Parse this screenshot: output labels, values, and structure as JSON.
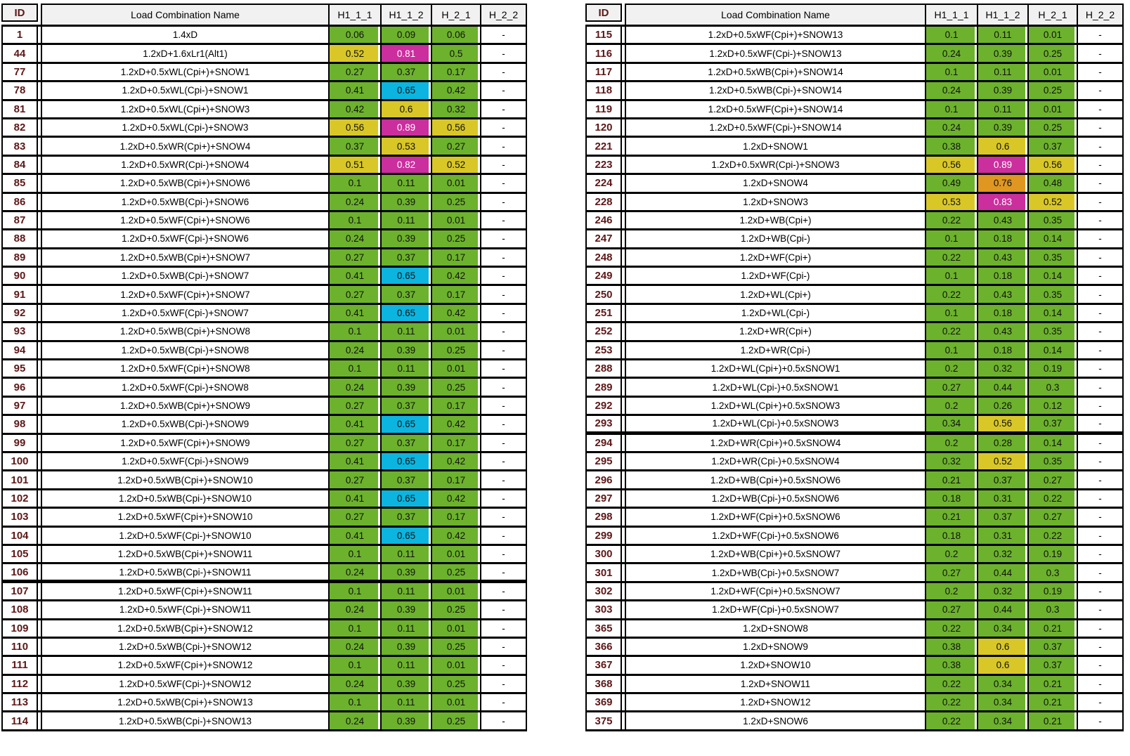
{
  "report": {
    "columns": [
      "ID",
      "Load Combination Name",
      "H1_1_1",
      "H1_1_2",
      "H_2_1",
      "H_2_2"
    ],
    "empty_value": "-",
    "colors": {
      "green": "#6CB22D",
      "yellow": "#D9C728",
      "magenta": "#CB2E9D",
      "cyan": "#0BB5DF",
      "orange": "#DF9722",
      "idText": "#5E1717",
      "headerBg": "#F1F1F1",
      "border": "#000000"
    },
    "tables": [
      {
        "rows": [
          {
            "id": "1",
            "name": "1.4xD",
            "v": [
              "0.06",
              "0.09",
              "0.06"
            ],
            "c": "ggg"
          },
          {
            "id": "44",
            "name": "1.2xD+1.6xLr1(Alt1)",
            "v": [
              "0.52",
              "0.81",
              "0.5"
            ],
            "c": "ymg"
          },
          {
            "id": "77",
            "name": "1.2xD+0.5xWL(Cpi+)+SNOW1",
            "v": [
              "0.27",
              "0.37",
              "0.17"
            ],
            "c": "ggg"
          },
          {
            "id": "78",
            "name": "1.2xD+0.5xWL(Cpi-)+SNOW1",
            "v": [
              "0.41",
              "0.65",
              "0.42"
            ],
            "c": "gcg"
          },
          {
            "id": "81",
            "name": "1.2xD+0.5xWL(Cpi+)+SNOW3",
            "v": [
              "0.42",
              "0.6",
              "0.32"
            ],
            "c": "gyg"
          },
          {
            "id": "82",
            "name": "1.2xD+0.5xWL(Cpi-)+SNOW3",
            "v": [
              "0.56",
              "0.89",
              "0.56"
            ],
            "c": "ymy"
          },
          {
            "id": "83",
            "name": "1.2xD+0.5xWR(Cpi+)+SNOW4",
            "v": [
              "0.37",
              "0.53",
              "0.27"
            ],
            "c": "gyg"
          },
          {
            "id": "84",
            "name": "1.2xD+0.5xWR(Cpi-)+SNOW4",
            "v": [
              "0.51",
              "0.82",
              "0.52"
            ],
            "c": "ymy"
          },
          {
            "id": "85",
            "name": "1.2xD+0.5xWB(Cpi+)+SNOW6",
            "v": [
              "0.1",
              "0.11",
              "0.01"
            ],
            "c": "ggg"
          },
          {
            "id": "86",
            "name": "1.2xD+0.5xWB(Cpi-)+SNOW6",
            "v": [
              "0.24",
              "0.39",
              "0.25"
            ],
            "c": "ggg"
          },
          {
            "id": "87",
            "name": "1.2xD+0.5xWF(Cpi+)+SNOW6",
            "v": [
              "0.1",
              "0.11",
              "0.01"
            ],
            "c": "ggg"
          },
          {
            "id": "88",
            "name": "1.2xD+0.5xWF(Cpi-)+SNOW6",
            "v": [
              "0.24",
              "0.39",
              "0.25"
            ],
            "c": "ggg"
          },
          {
            "id": "89",
            "name": "1.2xD+0.5xWB(Cpi+)+SNOW7",
            "v": [
              "0.27",
              "0.37",
              "0.17"
            ],
            "c": "ggg"
          },
          {
            "id": "90",
            "name": "1.2xD+0.5xWB(Cpi-)+SNOW7",
            "v": [
              "0.41",
              "0.65",
              "0.42"
            ],
            "c": "gcg"
          },
          {
            "id": "91",
            "name": "1.2xD+0.5xWF(Cpi+)+SNOW7",
            "v": [
              "0.27",
              "0.37",
              "0.17"
            ],
            "c": "ggg"
          },
          {
            "id": "92",
            "name": "1.2xD+0.5xWF(Cpi-)+SNOW7",
            "v": [
              "0.41",
              "0.65",
              "0.42"
            ],
            "c": "gcg"
          },
          {
            "id": "93",
            "name": "1.2xD+0.5xWB(Cpi+)+SNOW8",
            "v": [
              "0.1",
              "0.11",
              "0.01"
            ],
            "c": "ggg"
          },
          {
            "id": "94",
            "name": "1.2xD+0.5xWB(Cpi-)+SNOW8",
            "v": [
              "0.24",
              "0.39",
              "0.25"
            ],
            "c": "ggg"
          },
          {
            "id": "95",
            "name": "1.2xD+0.5xWF(Cpi+)+SNOW8",
            "v": [
              "0.1",
              "0.11",
              "0.01"
            ],
            "c": "ggg"
          },
          {
            "id": "96",
            "name": "1.2xD+0.5xWF(Cpi-)+SNOW8",
            "v": [
              "0.24",
              "0.39",
              "0.25"
            ],
            "c": "ggg"
          },
          {
            "id": "97",
            "name": "1.2xD+0.5xWB(Cpi+)+SNOW9",
            "v": [
              "0.27",
              "0.37",
              "0.17"
            ],
            "c": "ggg"
          },
          {
            "id": "98",
            "name": "1.2xD+0.5xWB(Cpi-)+SNOW9",
            "v": [
              "0.41",
              "0.65",
              "0.42"
            ],
            "c": "gcg"
          },
          {
            "id": "99",
            "name": "1.2xD+0.5xWF(Cpi+)+SNOW9",
            "v": [
              "0.27",
              "0.37",
              "0.17"
            ],
            "c": "ggg"
          },
          {
            "id": "100",
            "name": "1.2xD+0.5xWF(Cpi-)+SNOW9",
            "v": [
              "0.41",
              "0.65",
              "0.42"
            ],
            "c": "gcg"
          },
          {
            "id": "101",
            "name": "1.2xD+0.5xWB(Cpi+)+SNOW10",
            "v": [
              "0.27",
              "0.37",
              "0.17"
            ],
            "c": "ggg"
          },
          {
            "id": "102",
            "name": "1.2xD+0.5xWB(Cpi-)+SNOW10",
            "v": [
              "0.41",
              "0.65",
              "0.42"
            ],
            "c": "gcg"
          },
          {
            "id": "103",
            "name": "1.2xD+0.5xWF(Cpi+)+SNOW10",
            "v": [
              "0.27",
              "0.37",
              "0.17"
            ],
            "c": "ggg"
          },
          {
            "id": "104",
            "name": "1.2xD+0.5xWF(Cpi-)+SNOW10",
            "v": [
              "0.41",
              "0.65",
              "0.42"
            ],
            "c": "gcg"
          },
          {
            "id": "105",
            "name": "1.2xD+0.5xWB(Cpi+)+SNOW11",
            "v": [
              "0.1",
              "0.11",
              "0.01"
            ],
            "c": "ggg"
          },
          {
            "id": "106",
            "name": "1.2xD+0.5xWB(Cpi-)+SNOW11",
            "v": [
              "0.24",
              "0.39",
              "0.25"
            ],
            "c": "ggg",
            "t": true
          },
          {
            "id": "107",
            "name": "1.2xD+0.5xWF(Cpi+)+SNOW11",
            "v": [
              "0.1",
              "0.11",
              "0.01"
            ],
            "c": "ggg"
          },
          {
            "id": "108",
            "name": "1.2xD+0.5xWF(Cpi-)+SNOW11",
            "v": [
              "0.24",
              "0.39",
              "0.25"
            ],
            "c": "ggg"
          },
          {
            "id": "109",
            "name": "1.2xD+0.5xWB(Cpi+)+SNOW12",
            "v": [
              "0.1",
              "0.11",
              "0.01"
            ],
            "c": "ggg"
          },
          {
            "id": "110",
            "name": "1.2xD+0.5xWB(Cpi-)+SNOW12",
            "v": [
              "0.24",
              "0.39",
              "0.25"
            ],
            "c": "ggg"
          },
          {
            "id": "111",
            "name": "1.2xD+0.5xWF(Cpi+)+SNOW12",
            "v": [
              "0.1",
              "0.11",
              "0.01"
            ],
            "c": "ggg"
          },
          {
            "id": "112",
            "name": "1.2xD+0.5xWF(Cpi-)+SNOW12",
            "v": [
              "0.24",
              "0.39",
              "0.25"
            ],
            "c": "ggg"
          },
          {
            "id": "113",
            "name": "1.2xD+0.5xWB(Cpi+)+SNOW13",
            "v": [
              "0.1",
              "0.11",
              "0.01"
            ],
            "c": "ggg"
          },
          {
            "id": "114",
            "name": "1.2xD+0.5xWB(Cpi-)+SNOW13",
            "v": [
              "0.24",
              "0.39",
              "0.25"
            ],
            "c": "ggg"
          }
        ]
      },
      {
        "rows": [
          {
            "id": "115",
            "name": "1.2xD+0.5xWF(Cpi+)+SNOW13",
            "v": [
              "0.1",
              "0.11",
              "0.01"
            ],
            "c": "ggg"
          },
          {
            "id": "116",
            "name": "1.2xD+0.5xWF(Cpi-)+SNOW13",
            "v": [
              "0.24",
              "0.39",
              "0.25"
            ],
            "c": "ggg"
          },
          {
            "id": "117",
            "name": "1.2xD+0.5xWB(Cpi+)+SNOW14",
            "v": [
              "0.1",
              "0.11",
              "0.01"
            ],
            "c": "ggg"
          },
          {
            "id": "118",
            "name": "1.2xD+0.5xWB(Cpi-)+SNOW14",
            "v": [
              "0.24",
              "0.39",
              "0.25"
            ],
            "c": "ggg"
          },
          {
            "id": "119",
            "name": "1.2xD+0.5xWF(Cpi+)+SNOW14",
            "v": [
              "0.1",
              "0.11",
              "0.01"
            ],
            "c": "ggg"
          },
          {
            "id": "120",
            "name": "1.2xD+0.5xWF(Cpi-)+SNOW14",
            "v": [
              "0.24",
              "0.39",
              "0.25"
            ],
            "c": "ggg"
          },
          {
            "id": "221",
            "name": "1.2xD+SNOW1",
            "v": [
              "0.38",
              "0.6",
              "0.37"
            ],
            "c": "gyg"
          },
          {
            "id": "223",
            "name": "1.2xD+0.5xWR(Cpi-)+SNOW3",
            "v": [
              "0.56",
              "0.89",
              "0.56"
            ],
            "c": "ymy"
          },
          {
            "id": "224",
            "name": "1.2xD+SNOW4",
            "v": [
              "0.49",
              "0.76",
              "0.48"
            ],
            "c": "gog"
          },
          {
            "id": "228",
            "name": "1.2xD+SNOW3",
            "v": [
              "0.53",
              "0.83",
              "0.52"
            ],
            "c": "ymy"
          },
          {
            "id": "246",
            "name": "1.2xD+WB(Cpi+)",
            "v": [
              "0.22",
              "0.43",
              "0.35"
            ],
            "c": "ggg"
          },
          {
            "id": "247",
            "name": "1.2xD+WB(Cpi-)",
            "v": [
              "0.1",
              "0.18",
              "0.14"
            ],
            "c": "ggg"
          },
          {
            "id": "248",
            "name": "1.2xD+WF(Cpi+)",
            "v": [
              "0.22",
              "0.43",
              "0.35"
            ],
            "c": "ggg"
          },
          {
            "id": "249",
            "name": "1.2xD+WF(Cpi-)",
            "v": [
              "0.1",
              "0.18",
              "0.14"
            ],
            "c": "ggg"
          },
          {
            "id": "250",
            "name": "1.2xD+WL(Cpi+)",
            "v": [
              "0.22",
              "0.43",
              "0.35"
            ],
            "c": "ggg"
          },
          {
            "id": "251",
            "name": "1.2xD+WL(Cpi-)",
            "v": [
              "0.1",
              "0.18",
              "0.14"
            ],
            "c": "ggg"
          },
          {
            "id": "252",
            "name": "1.2xD+WR(Cpi+)",
            "v": [
              "0.22",
              "0.43",
              "0.35"
            ],
            "c": "ggg"
          },
          {
            "id": "253",
            "name": "1.2xD+WR(Cpi-)",
            "v": [
              "0.1",
              "0.18",
              "0.14"
            ],
            "c": "ggg"
          },
          {
            "id": "288",
            "name": "1.2xD+WL(Cpi+)+0.5xSNOW1",
            "v": [
              "0.2",
              "0.32",
              "0.19"
            ],
            "c": "ggg"
          },
          {
            "id": "289",
            "name": "1.2xD+WL(Cpi-)+0.5xSNOW1",
            "v": [
              "0.27",
              "0.44",
              "0.3"
            ],
            "c": "ggg"
          },
          {
            "id": "292",
            "name": "1.2xD+WL(Cpi+)+0.5xSNOW3",
            "v": [
              "0.2",
              "0.26",
              "0.12"
            ],
            "c": "ggg"
          },
          {
            "id": "293",
            "name": "1.2xD+WL(Cpi-)+0.5xSNOW3",
            "v": [
              "0.34",
              "0.56",
              "0.37"
            ],
            "c": "gyg",
            "t": true
          },
          {
            "id": "294",
            "name": "1.2xD+WR(Cpi+)+0.5xSNOW4",
            "v": [
              "0.2",
              "0.28",
              "0.14"
            ],
            "c": "ggg"
          },
          {
            "id": "295",
            "name": "1.2xD+WR(Cpi-)+0.5xSNOW4",
            "v": [
              "0.32",
              "0.52",
              "0.35"
            ],
            "c": "gyg"
          },
          {
            "id": "296",
            "name": "1.2xD+WB(Cpi+)+0.5xSNOW6",
            "v": [
              "0.21",
              "0.37",
              "0.27"
            ],
            "c": "ggg"
          },
          {
            "id": "297",
            "name": "1.2xD+WB(Cpi-)+0.5xSNOW6",
            "v": [
              "0.18",
              "0.31",
              "0.22"
            ],
            "c": "ggg"
          },
          {
            "id": "298",
            "name": "1.2xD+WF(Cpi+)+0.5xSNOW6",
            "v": [
              "0.21",
              "0.37",
              "0.27"
            ],
            "c": "ggg"
          },
          {
            "id": "299",
            "name": "1.2xD+WF(Cpi-)+0.5xSNOW6",
            "v": [
              "0.18",
              "0.31",
              "0.22"
            ],
            "c": "ggg"
          },
          {
            "id": "300",
            "name": "1.2xD+WB(Cpi+)+0.5xSNOW7",
            "v": [
              "0.2",
              "0.32",
              "0.19"
            ],
            "c": "ggg"
          },
          {
            "id": "301",
            "name": "1.2xD+WB(Cpi-)+0.5xSNOW7",
            "v": [
              "0.27",
              "0.44",
              "0.3"
            ],
            "c": "ggg"
          },
          {
            "id": "302",
            "name": "1.2xD+WF(Cpi+)+0.5xSNOW7",
            "v": [
              "0.2",
              "0.32",
              "0.19"
            ],
            "c": "ggg"
          },
          {
            "id": "303",
            "name": "1.2xD+WF(Cpi-)+0.5xSNOW7",
            "v": [
              "0.27",
              "0.44",
              "0.3"
            ],
            "c": "ggg"
          },
          {
            "id": "365",
            "name": "1.2xD+SNOW8",
            "v": [
              "0.22",
              "0.34",
              "0.21"
            ],
            "c": "ggg"
          },
          {
            "id": "366",
            "name": "1.2xD+SNOW9",
            "v": [
              "0.38",
              "0.6",
              "0.37"
            ],
            "c": "gyg"
          },
          {
            "id": "367",
            "name": "1.2xD+SNOW10",
            "v": [
              "0.38",
              "0.6",
              "0.37"
            ],
            "c": "gyg"
          },
          {
            "id": "368",
            "name": "1.2xD+SNOW11",
            "v": [
              "0.22",
              "0.34",
              "0.21"
            ],
            "c": "ggg"
          },
          {
            "id": "369",
            "name": "1.2xD+SNOW12",
            "v": [
              "0.22",
              "0.34",
              "0.21"
            ],
            "c": "ggg"
          },
          {
            "id": "375",
            "name": "1.2xD+SNOW6",
            "v": [
              "0.22",
              "0.34",
              "0.21"
            ],
            "c": "ggg"
          }
        ]
      }
    ]
  }
}
